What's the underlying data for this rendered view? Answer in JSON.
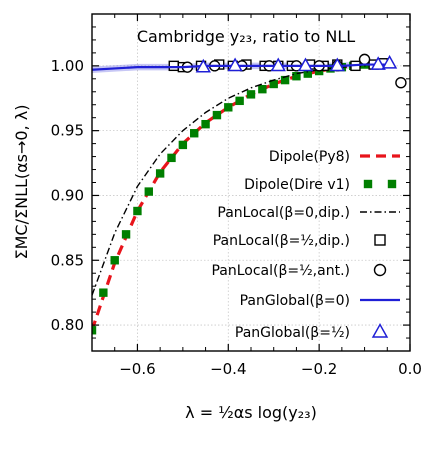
{
  "chart_data": {
    "type": "line",
    "title": "Cambridge y₂₃, ratio to NLL",
    "xlabel": "λ = ½αs log(y₂₃)",
    "ylabel": "ΣMC/ΣNLL(αs→0, λ)",
    "xlim": [
      -0.7,
      0.0
    ],
    "ylim": [
      0.78,
      1.04
    ],
    "xticks": [
      -0.6,
      -0.4,
      -0.2,
      0.0
    ],
    "xtick_labels": [
      "−0.6",
      "−0.4",
      "−0.2",
      "0.0"
    ],
    "yticks": [
      0.8,
      0.85,
      0.9,
      0.95,
      1.0
    ],
    "ytick_labels": [
      "0.80",
      "0.85",
      "0.90",
      "0.95",
      "1.00"
    ],
    "grid": true,
    "legend_position": "right",
    "series": [
      {
        "name": "Dipole(Py8)",
        "style": "dashed-line",
        "color": "#e8141b",
        "x": [
          -0.7,
          -0.65,
          -0.6,
          -0.55,
          -0.5,
          -0.45,
          -0.4,
          -0.35,
          -0.3,
          -0.25,
          -0.2,
          -0.15,
          -0.1,
          -0.05
        ],
        "y": [
          0.796,
          0.848,
          0.888,
          0.918,
          0.94,
          0.956,
          0.968,
          0.978,
          0.986,
          0.992,
          0.996,
          0.999,
          1.001,
          1.002
        ]
      },
      {
        "name": "Dipole(Dire v1)",
        "style": "square-dotted",
        "color": "#007f00",
        "x": [
          -0.7,
          -0.675,
          -0.65,
          -0.625,
          -0.6,
          -0.575,
          -0.55,
          -0.525,
          -0.5,
          -0.475,
          -0.45,
          -0.425,
          -0.4,
          -0.375,
          -0.35,
          -0.325,
          -0.3,
          -0.275,
          -0.25,
          -0.225,
          -0.2,
          -0.175,
          -0.15,
          -0.125,
          -0.1,
          -0.075,
          -0.05
        ],
        "y": [
          0.796,
          0.825,
          0.85,
          0.87,
          0.888,
          0.903,
          0.917,
          0.929,
          0.939,
          0.948,
          0.955,
          0.962,
          0.968,
          0.973,
          0.978,
          0.982,
          0.986,
          0.989,
          0.992,
          0.994,
          0.996,
          0.998,
          0.999,
          1.0,
          1.001,
          1.001,
          1.002
        ]
      },
      {
        "name": "PanLocal(β=0,dip.)",
        "style": "dash-dot-line",
        "color": "#000000",
        "x": [
          -0.7,
          -0.65,
          -0.6,
          -0.55,
          -0.5,
          -0.45,
          -0.4,
          -0.35,
          -0.3,
          -0.25,
          -0.2,
          -0.15,
          -0.1,
          -0.05
        ],
        "y": [
          0.823,
          0.871,
          0.907,
          0.932,
          0.95,
          0.964,
          0.975,
          0.983,
          0.989,
          0.994,
          0.997,
          0.999,
          1.0,
          1.001
        ]
      },
      {
        "name": "PanLocal(β=½,dip.)",
        "style": "square-markers",
        "color": "#000000",
        "x": [
          -0.52,
          -0.5,
          -0.46,
          -0.42,
          -0.39,
          -0.36,
          -0.32,
          -0.29,
          -0.26,
          -0.22,
          -0.19,
          -0.16,
          -0.12,
          -0.08,
          -0.06
        ],
        "y": [
          1.0,
          0.999,
          1.0,
          1.001,
          1.0,
          1.001,
          1.0,
          1.0,
          1.0,
          1.001,
          1.0,
          1.001,
          1.0,
          1.001,
          1.002
        ]
      },
      {
        "name": "PanLocal(β=½,ant.)",
        "style": "circle-markers",
        "color": "#000000",
        "x": [
          -0.49,
          -0.43,
          -0.37,
          -0.31,
          -0.25,
          -0.2,
          -0.16,
          -0.1,
          -0.02
        ],
        "y": [
          0.999,
          1.0,
          1.0,
          1.0,
          1.0,
          1.0,
          1.0,
          1.005,
          0.987
        ]
      },
      {
        "name": "PanGlobal(β=0)",
        "style": "solid-line-band",
        "color": "#1f1fd6",
        "x": [
          -0.7,
          -0.65,
          -0.6,
          -0.55,
          -0.5,
          -0.45,
          -0.4,
          -0.35,
          -0.3,
          -0.25,
          -0.2,
          -0.15,
          -0.1,
          -0.05
        ],
        "y": [
          0.997,
          0.998,
          0.999,
          0.999,
          0.999,
          1.0,
          1.0,
          1.0,
          1.0,
          1.0,
          1.0,
          1.0,
          1.001,
          1.001
        ]
      },
      {
        "name": "PanGlobal(β=½)",
        "style": "triangle-markers",
        "color": "#1f1fd6",
        "x": [
          -0.455,
          -0.385,
          -0.29,
          -0.23,
          -0.16,
          -0.07,
          -0.045
        ],
        "y": [
          0.999,
          1.0,
          1.0,
          1.0,
          1.0,
          1.001,
          1.002
        ]
      }
    ]
  }
}
